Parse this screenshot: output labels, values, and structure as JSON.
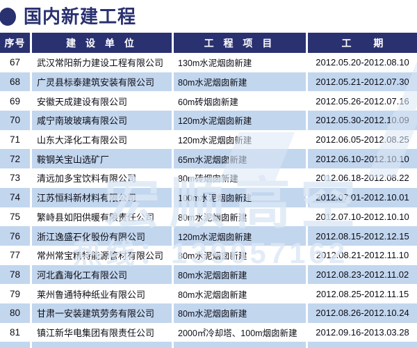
{
  "title": {
    "text": "国内新建工程"
  },
  "table": {
    "headers": [
      "序号",
      "建 设 单 位",
      "工 程 项 目",
      "工  期"
    ],
    "rows": [
      {
        "no": "67",
        "company": "武汉常阳新力建设工程有限公司",
        "project": "130m水泥烟囱新建",
        "period": "2012.05.20-2012.08.10"
      },
      {
        "no": "68",
        "company": "广灵县标泰建筑安装有限公司",
        "project": "80m水泥烟囱新建",
        "period": "2012.05.21-2012.07.30"
      },
      {
        "no": "69",
        "company": "安徽天成建设有限公司",
        "project": "60m砖烟囱新建",
        "period": "2012.05.26-2012.07.16"
      },
      {
        "no": "70",
        "company": "咸宁南玻玻璃有限公司",
        "project": "120m水泥烟囱新建",
        "period": "2012.05.30-2012.10.09"
      },
      {
        "no": "71",
        "company": "山东大泽化工有限公司",
        "project": "120m水泥烟囱新建",
        "period": "2012.06.05-2012.08.25"
      },
      {
        "no": "72",
        "company": "鞍钢关宝山选矿厂",
        "project": "65m水泥烟囱新建",
        "period": "2012.06.10-2012.10.10"
      },
      {
        "no": "73",
        "company": "清远加多宝饮料有限公司",
        "project": "80m砖烟囱新建",
        "period": "2012.06.18-2012.08.22"
      },
      {
        "no": "74",
        "company": "江苏恒科新材料有限公司",
        "project": "100m水泥烟囱新建",
        "period": "2012.07.01-2012.10.01"
      },
      {
        "no": "75",
        "company": "繁峙县如阳供暖有限责任公司",
        "project": "80m水泥烟囱新建",
        "period": "2012.07.10-2012.10.10"
      },
      {
        "no": "76",
        "company": "浙江逸盛石化股份有限公司",
        "project": "120m水泥烟囱新建",
        "period": "2012.08.15-2012.12.15"
      },
      {
        "no": "77",
        "company": "常州常宝精特能源管材有限公司",
        "project": "80m水泥烟囱新建",
        "period": "2012.08.21-2012.11.10"
      },
      {
        "no": "78",
        "company": "河北鑫海化工有限公司",
        "project": "80m水泥烟囱新建",
        "period": "2012.08.23-2012.11.02"
      },
      {
        "no": "79",
        "company": "莱州鲁通特种纸业有限公司",
        "project": "80m水泥烟囱新建",
        "period": "2012.08.25-2012.11.15"
      },
      {
        "no": "80",
        "company": "甘肃一安装建筑劳务有限公司",
        "project": "80m水泥烟囱新建",
        "period": "2012.08.26-2012.10.24"
      },
      {
        "no": "81",
        "company": "镇江新华电集团有限责任公司",
        "project": "2000㎡冷却塔、100m烟囱新建",
        "period": "2012.09.16-2013.03.28"
      }
    ]
  },
  "watermark": {
    "main": "宏顺高空",
    "phone": "热线：139057162"
  },
  "colors": {
    "navy": "#2a3170",
    "row_blue": "#c2d6ee",
    "header_text": "#ffffff",
    "body_text": "#0d0d16",
    "watermark": "#dce8f6"
  }
}
